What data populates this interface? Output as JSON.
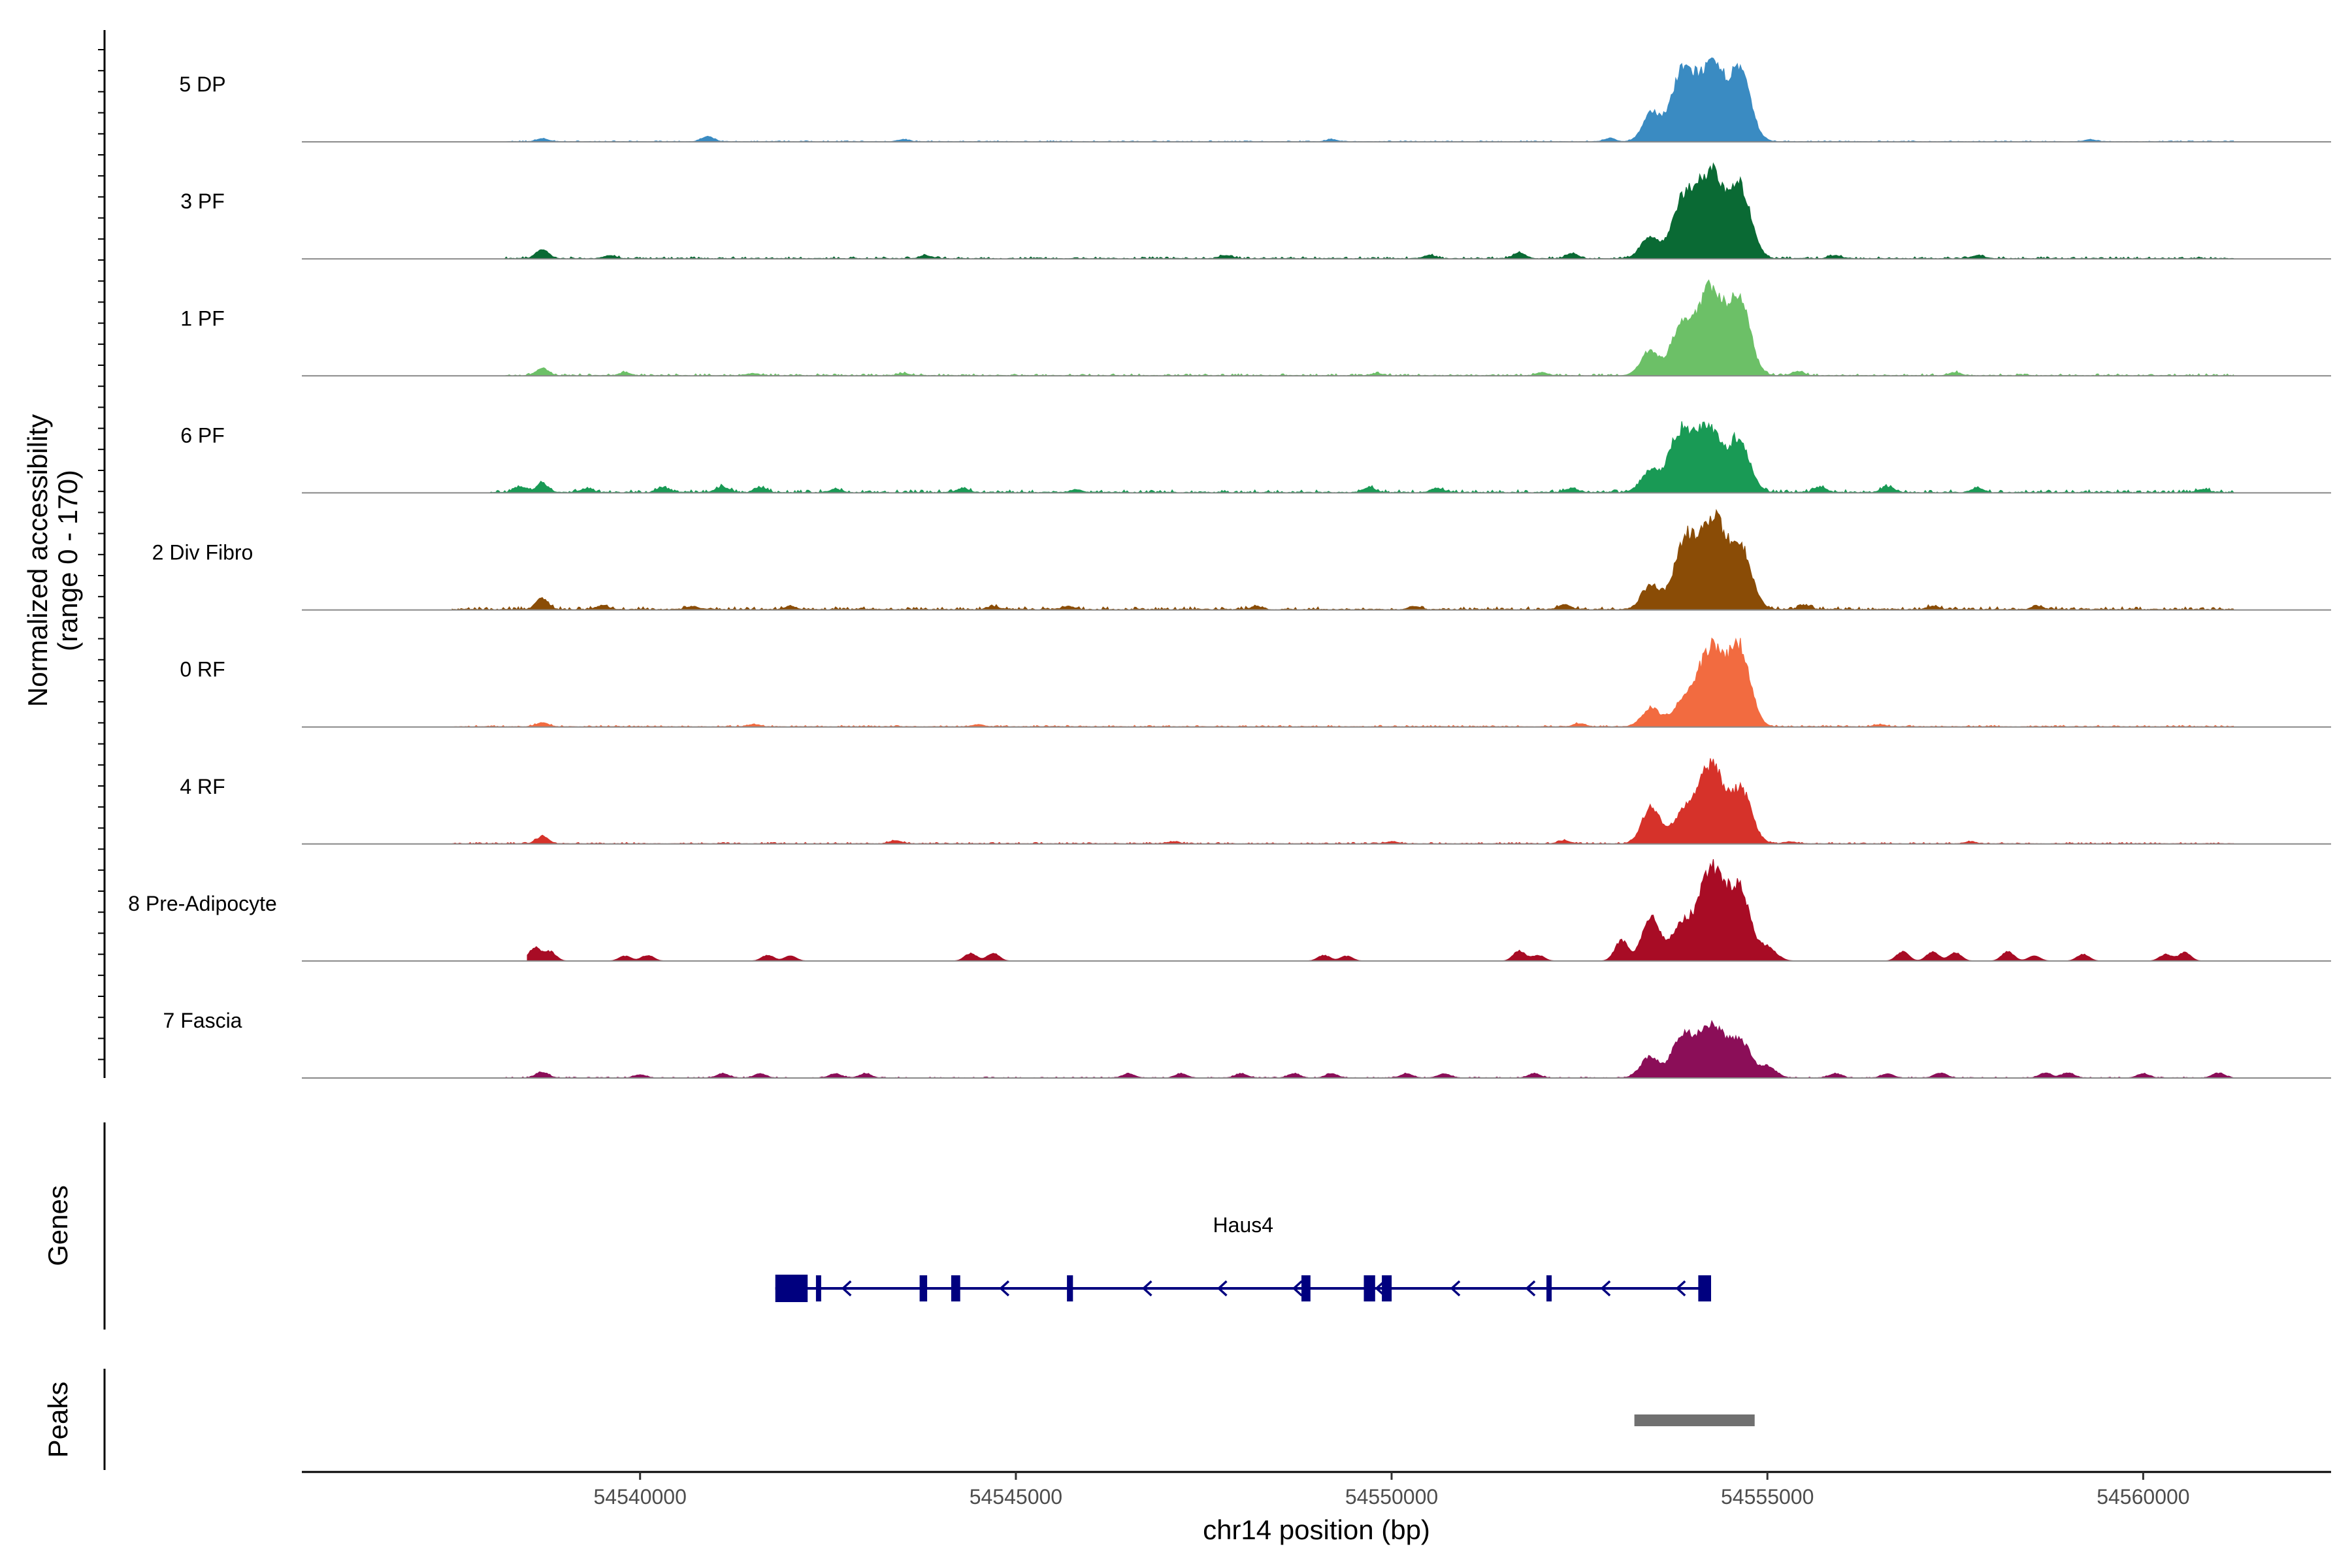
{
  "chart_data": {
    "type": "area",
    "title": "",
    "ylabel": "Normalized accessibility",
    "ylabel_sub": "(range 0 - 170)",
    "yrange": [
      0,
      170
    ],
    "xlabel": "chr14 position (bp)",
    "xlim": [
      54535500,
      54562500
    ],
    "xticks": [
      54540000,
      54545000,
      54550000,
      54555000,
      54560000
    ],
    "xtick_labels": [
      "54540000",
      "54545000",
      "54550000",
      "54555000",
      "54560000"
    ],
    "tracks": [
      {
        "name": "5 DP",
        "color": "#3a8bc2",
        "bg": 0.01,
        "peaks": [
          [
            54553460,
            30,
            0.3
          ],
          [
            54553860,
            38,
            0.68
          ],
          [
            54554260,
            50,
            0.8
          ],
          [
            54554650,
            35,
            0.65
          ]
        ],
        "blips": [
          [
            54538700,
            0.03
          ],
          [
            54540900,
            0.05
          ],
          [
            54543500,
            0.02
          ],
          [
            54549200,
            0.02
          ],
          [
            54552900,
            0.03
          ],
          [
            54559300,
            0.02
          ]
        ],
        "range": [
          54538200,
          54561200
        ]
      },
      {
        "name": "3 PF",
        "color": "#0a6a34",
        "bg": 0.02,
        "peaks": [
          [
            54553430,
            30,
            0.22
          ],
          [
            54553880,
            38,
            0.62
          ],
          [
            54554260,
            45,
            0.94
          ],
          [
            54554650,
            35,
            0.7
          ]
        ],
        "blips": [
          [
            54538700,
            0.1
          ],
          [
            54539600,
            0.03
          ],
          [
            54543800,
            0.03
          ],
          [
            54547800,
            0.03
          ],
          [
            54550500,
            0.03
          ],
          [
            54551700,
            0.06
          ],
          [
            54552400,
            0.05
          ],
          [
            54555900,
            0.03
          ],
          [
            54557800,
            0.03
          ]
        ],
        "range": [
          54538200,
          54561200
        ]
      },
      {
        "name": "1 PF",
        "color": "#6cc067",
        "bg": 0.02,
        "peaks": [
          [
            54553430,
            30,
            0.26
          ],
          [
            54553860,
            38,
            0.5
          ],
          [
            54554250,
            45,
            0.93
          ],
          [
            54554640,
            35,
            0.76
          ]
        ],
        "blips": [
          [
            54538700,
            0.08
          ],
          [
            54539800,
            0.03
          ],
          [
            54541500,
            0.02
          ],
          [
            54543500,
            0.02
          ],
          [
            54549800,
            0.02
          ],
          [
            54552000,
            0.03
          ],
          [
            54555400,
            0.04
          ],
          [
            54557500,
            0.03
          ]
        ],
        "range": [
          54538200,
          54561200
        ]
      },
      {
        "name": "6 PF",
        "color": "#199a55",
        "bg": 0.03,
        "peaks": [
          [
            54553430,
            30,
            0.22
          ],
          [
            54553830,
            38,
            0.6
          ],
          [
            54554210,
            45,
            0.7
          ],
          [
            54554630,
            35,
            0.54
          ]
        ],
        "blips": [
          [
            54538400,
            0.06
          ],
          [
            54538700,
            0.1
          ],
          [
            54539300,
            0.04
          ],
          [
            54540300,
            0.05
          ],
          [
            54541100,
            0.06
          ],
          [
            54541600,
            0.05
          ],
          [
            54542600,
            0.03
          ],
          [
            54544300,
            0.04
          ],
          [
            54545800,
            0.03
          ],
          [
            54549700,
            0.05
          ],
          [
            54550600,
            0.04
          ],
          [
            54552400,
            0.04
          ],
          [
            54555700,
            0.06
          ],
          [
            54556600,
            0.06
          ],
          [
            54557800,
            0.04
          ],
          [
            54560800,
            0.03
          ]
        ],
        "range": [
          54538000,
          54561200
        ]
      },
      {
        "name": "2 Div Fibro",
        "color": "#8a4c06",
        "bg": 0.03,
        "peaks": [
          [
            54553450,
            30,
            0.26
          ],
          [
            54553900,
            38,
            0.7
          ],
          [
            54554280,
            45,
            0.98
          ],
          [
            54554660,
            35,
            0.6
          ]
        ],
        "blips": [
          [
            54538700,
            0.12
          ],
          [
            54539500,
            0.04
          ],
          [
            54540700,
            0.03
          ],
          [
            54542000,
            0.03
          ],
          [
            54544700,
            0.03
          ],
          [
            54545700,
            0.03
          ],
          [
            54548200,
            0.03
          ],
          [
            54550300,
            0.03
          ],
          [
            54552300,
            0.05
          ],
          [
            54555500,
            0.04
          ],
          [
            54557200,
            0.03
          ],
          [
            54558600,
            0.03
          ]
        ],
        "range": [
          54537500,
          54561200
        ]
      },
      {
        "name": "0 RF",
        "color": "#f26b40",
        "bg": 0.015,
        "peaks": [
          [
            54553450,
            30,
            0.2
          ],
          [
            54553880,
            38,
            0.25
          ],
          [
            54554260,
            45,
            0.85
          ],
          [
            54554640,
            35,
            0.8
          ]
        ],
        "blips": [
          [
            54538700,
            0.04
          ],
          [
            54541500,
            0.02
          ],
          [
            54544500,
            0.02
          ],
          [
            54552500,
            0.03
          ],
          [
            54556500,
            0.02
          ]
        ],
        "range": [
          54537500,
          54561200
        ]
      },
      {
        "name": "4 RF",
        "color": "#d6322a",
        "bg": 0.015,
        "peaks": [
          [
            54553450,
            30,
            0.4
          ],
          [
            54553870,
            36,
            0.3
          ],
          [
            54554250,
            45,
            0.84
          ],
          [
            54554660,
            35,
            0.54
          ]
        ],
        "blips": [
          [
            54538700,
            0.08
          ],
          [
            54543400,
            0.03
          ],
          [
            54547100,
            0.02
          ],
          [
            54550000,
            0.02
          ],
          [
            54552300,
            0.03
          ],
          [
            54555300,
            0.02
          ],
          [
            54557700,
            0.02
          ]
        ],
        "range": [
          54537500,
          54561200
        ]
      },
      {
        "name": "8 Pre-Adipocyte",
        "color": "#a80c25",
        "bg": 0.0,
        "peaks": [
          [
            54553060,
            22,
            0.22
          ],
          [
            54553450,
            30,
            0.48
          ],
          [
            54553850,
            34,
            0.36
          ],
          [
            54554260,
            45,
            1.0
          ],
          [
            54554640,
            35,
            0.7
          ],
          [
            54555000,
            30,
            0.14
          ]
        ],
        "blips": [
          [
            54538600,
            0.14
          ],
          [
            54538800,
            0.1
          ],
          [
            54539800,
            0.05
          ],
          [
            54540100,
            0.06
          ],
          [
            54541700,
            0.06
          ],
          [
            54542000,
            0.05
          ],
          [
            54544400,
            0.08
          ],
          [
            54544700,
            0.08
          ],
          [
            54549100,
            0.06
          ],
          [
            54549400,
            0.05
          ],
          [
            54551700,
            0.11
          ],
          [
            54551950,
            0.06
          ],
          [
            54556800,
            0.1
          ],
          [
            54557200,
            0.1
          ],
          [
            54557500,
            0.09
          ],
          [
            54558200,
            0.1
          ],
          [
            54558550,
            0.05
          ],
          [
            54559200,
            0.07
          ],
          [
            54560300,
            0.07
          ],
          [
            54560550,
            0.09
          ]
        ],
        "range": [
          54538500,
          54562200
        ]
      },
      {
        "name": "7 Fascia",
        "color": "#8b0e58",
        "bg": 0.01,
        "peaks": [
          [
            54553430,
            30,
            0.22
          ],
          [
            54553860,
            36,
            0.42
          ],
          [
            54554250,
            45,
            0.57
          ],
          [
            54554640,
            35,
            0.38
          ],
          [
            54555000,
            28,
            0.12
          ]
        ],
        "blips": [
          [
            54538700,
            0.06
          ],
          [
            54540000,
            0.03
          ],
          [
            54541100,
            0.04
          ],
          [
            54541600,
            0.04
          ],
          [
            54542600,
            0.04
          ],
          [
            54543000,
            0.04
          ],
          [
            54546500,
            0.04
          ],
          [
            54547200,
            0.04
          ],
          [
            54548000,
            0.04
          ],
          [
            54548700,
            0.04
          ],
          [
            54549200,
            0.04
          ],
          [
            54550200,
            0.04
          ],
          [
            54550700,
            0.04
          ],
          [
            54551900,
            0.04
          ],
          [
            54555900,
            0.04
          ],
          [
            54556600,
            0.04
          ],
          [
            54557300,
            0.05
          ],
          [
            54558700,
            0.05
          ],
          [
            54559000,
            0.05
          ],
          [
            54560000,
            0.04
          ],
          [
            54561000,
            0.05
          ]
        ],
        "range": [
          54538200,
          54561200
        ]
      }
    ],
    "genes": {
      "label": "Genes",
      "items": [
        {
          "name": "Haus4",
          "strand": "-",
          "start": 54541800,
          "end": 54554250,
          "exons": [
            [
              54541800,
              54542230
            ],
            [
              54542340,
              54542400
            ],
            [
              54543720,
              54543820
            ],
            [
              54544140,
              54544260
            ],
            [
              54545680,
              54545760
            ],
            [
              54548800,
              54548920
            ],
            [
              54549630,
              54549780
            ],
            [
              54549870,
              54550000
            ],
            [
              54552060,
              54552120
            ],
            [
              54554080,
              54554250
            ]
          ],
          "arrows": [
            54542700,
            54544800,
            54546700,
            54547700,
            54548700,
            54549800,
            54550800,
            54551800,
            54552800,
            54553800
          ]
        }
      ],
      "color": "#00007f"
    },
    "peaks": {
      "label": "Peaks",
      "regions": [
        [
          54553230,
          54554830
        ]
      ],
      "color": "#707070"
    }
  }
}
